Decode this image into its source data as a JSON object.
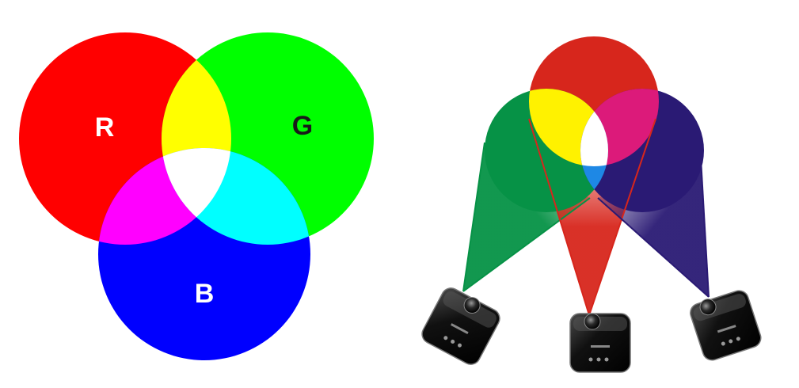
{
  "venn": {
    "label_r": "R",
    "label_g": "G",
    "label_b": "B",
    "colors": {
      "red": "#ff0000",
      "green": "#00ff00",
      "blue": "#0000ff",
      "yellow": "#ffff00",
      "magenta": "#ff00ff",
      "cyan": "#00ffff",
      "white": "#ffffff"
    }
  },
  "projection": {
    "colors": {
      "red": "#d7261c",
      "green": "#069246",
      "blue": "#2a1a74",
      "yellow": "#fff200",
      "magenta": "#dc1a7a",
      "light_blue": "#1e88e5",
      "white": "#ffffff"
    },
    "projectors": [
      "green-projector",
      "red-projector",
      "blue-projector"
    ]
  }
}
